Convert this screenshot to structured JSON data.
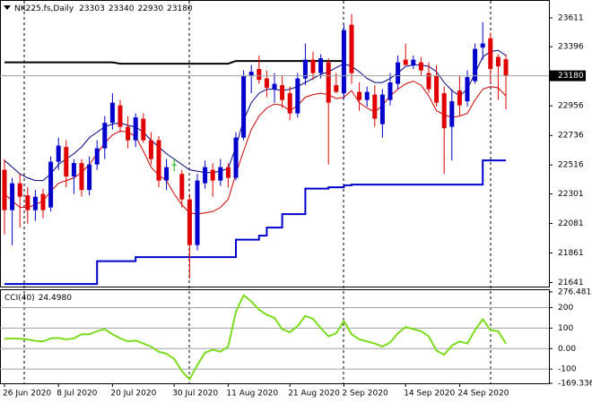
{
  "chart_data": {
    "type": "candlestick",
    "title": "NK225.fs,Daily",
    "colors": {
      "up": "#0000cd",
      "down": "#e00000",
      "doji": "#00b000",
      "price_line": "#a0a0a0"
    },
    "ylim": [
      21611,
      23744
    ],
    "yticks": [
      23611,
      23396,
      22956,
      22736,
      22516,
      22301,
      22081,
      21861,
      21641
    ],
    "xticks": [
      {
        "value": 0,
        "label": "26 Jun 2020"
      },
      {
        "value": 7,
        "label": "8 Jul 2020"
      },
      {
        "value": 14,
        "label": "20 Jul 2020"
      },
      {
        "value": 22,
        "label": "30 Jul 2020"
      },
      {
        "value": 29,
        "label": "11 Aug 2020"
      },
      {
        "value": 37,
        "label": "21 Aug 2020"
      },
      {
        "value": 44,
        "label": "2 Sep 2020"
      },
      {
        "value": 52,
        "label": "14 Sep 2020"
      },
      {
        "value": 59,
        "label": "24 Sep 2020"
      }
    ],
    "candles": [
      [
        22480,
        22560,
        22000,
        22180
      ],
      [
        22180,
        22420,
        21920,
        22380
      ],
      [
        22380,
        22450,
        22050,
        22280
      ],
      [
        22290,
        22350,
        22080,
        22180
      ],
      [
        22180,
        22330,
        22100,
        22280
      ],
      [
        22300,
        22340,
        22120,
        22180
      ],
      [
        22200,
        22580,
        22170,
        22540
      ],
      [
        22540,
        22720,
        22480,
        22660
      ],
      [
        22650,
        22700,
        22350,
        22430
      ],
      [
        22430,
        22560,
        22300,
        22530
      ],
      [
        22530,
        22560,
        22280,
        22330
      ],
      [
        22330,
        22580,
        22290,
        22520
      ],
      [
        22520,
        22700,
        22480,
        22640
      ],
      [
        22640,
        22880,
        22560,
        22830
      ],
      [
        22830,
        23050,
        22780,
        22980
      ],
      [
        22960,
        23000,
        22760,
        22800
      ],
      [
        22800,
        22880,
        22640,
        22700
      ],
      [
        22700,
        22900,
        22650,
        22870
      ],
      [
        22860,
        22900,
        22680,
        22700
      ],
      [
        22700,
        22760,
        22520,
        22560
      ],
      [
        22700,
        22730,
        22350,
        22400
      ],
      [
        22400,
        22560,
        22330,
        22500
      ],
      [
        22520,
        22560,
        22470,
        22520
      ],
      [
        22450,
        22480,
        22200,
        22260
      ],
      [
        22260,
        22300,
        21670,
        21920
      ],
      [
        21920,
        22450,
        21880,
        22400
      ],
      [
        22380,
        22550,
        22340,
        22500
      ],
      [
        22480,
        22530,
        22280,
        22400
      ],
      [
        22400,
        22560,
        22360,
        22500
      ],
      [
        22500,
        22530,
        22350,
        22420
      ],
      [
        22420,
        22760,
        22400,
        22720
      ],
      [
        22720,
        23220,
        22700,
        23180
      ],
      [
        23180,
        23260,
        23050,
        23210
      ],
      [
        23230,
        23330,
        23120,
        23150
      ],
      [
        23160,
        23220,
        23020,
        23090
      ],
      [
        23080,
        23200,
        22980,
        23120
      ],
      [
        23110,
        23180,
        22940,
        23000
      ],
      [
        23050,
        23100,
        22850,
        22900
      ],
      [
        22900,
        23200,
        22870,
        23160
      ],
      [
        23160,
        23420,
        23110,
        23300
      ],
      [
        23300,
        23360,
        23150,
        23200
      ],
      [
        23200,
        23340,
        23160,
        23310
      ],
      [
        23280,
        23310,
        22520,
        22980
      ],
      [
        23110,
        23200,
        23050,
        23060
      ],
      [
        23050,
        23560,
        23010,
        23520
      ],
      [
        23560,
        23640,
        23120,
        23200
      ],
      [
        23060,
        23130,
        22920,
        23000
      ],
      [
        23000,
        23100,
        22950,
        23060
      ],
      [
        23040,
        23110,
        22800,
        22860
      ],
      [
        22820,
        23080,
        22720,
        23040
      ],
      [
        23000,
        23200,
        22960,
        23130
      ],
      [
        23120,
        23330,
        23080,
        23280
      ],
      [
        23300,
        23420,
        23260,
        23260
      ],
      [
        23260,
        23330,
        23230,
        23300
      ],
      [
        23280,
        23320,
        23180,
        23220
      ],
      [
        23200,
        23280,
        23050,
        23080
      ],
      [
        23180,
        23260,
        22950,
        22980
      ],
      [
        23050,
        23100,
        22450,
        22790
      ],
      [
        22800,
        23080,
        22550,
        22990
      ],
      [
        23070,
        23180,
        22880,
        22960
      ],
      [
        22990,
        23220,
        22950,
        23170
      ],
      [
        23140,
        23420,
        23120,
        23380
      ],
      [
        23390,
        23580,
        23300,
        23420
      ],
      [
        23460,
        23500,
        23130,
        23230
      ],
      [
        23320,
        23340,
        23000,
        23250
      ],
      [
        23303,
        23340,
        22930,
        23180
      ]
    ],
    "overlays": [
      {
        "color": "#000000",
        "width": 2,
        "values": [
          23280,
          23280,
          23280,
          23280,
          23280,
          23280,
          23280,
          23280,
          23280,
          23280,
          23280,
          23280,
          23280,
          23280,
          23280,
          23270,
          23270,
          23270,
          23270,
          23270,
          23270,
          23270,
          23270,
          23270,
          23270,
          23270,
          23270,
          23270,
          23270,
          23270,
          23290,
          23290,
          23290,
          23290,
          23290,
          23290,
          23290,
          23290,
          23290,
          23290,
          23290,
          23290,
          23290,
          23290,
          23290,
          null,
          null,
          null,
          null,
          null,
          null,
          null,
          null,
          null,
          null,
          null,
          null,
          null,
          null,
          null,
          null,
          null,
          null,
          null,
          null,
          null
        ]
      },
      {
        "color": "#000080",
        "width": 1,
        "values": [
          22550,
          22500,
          22450,
          22420,
          22400,
          22400,
          22450,
          22520,
          22560,
          22600,
          22650,
          22720,
          22760,
          22800,
          22820,
          22830,
          22810,
          22800,
          22760,
          22700,
          22650,
          22600,
          22560,
          22520,
          22480,
          22470,
          22460,
          22460,
          22470,
          22490,
          22650,
          22850,
          22980,
          23050,
          23080,
          23080,
          23070,
          23080,
          23100,
          23130,
          23160,
          23190,
          23210,
          23240,
          23270,
          23250,
          23210,
          23160,
          23130,
          23130,
          23160,
          23200,
          23250,
          23260,
          23260,
          23250,
          23210,
          23130,
          23070,
          23030,
          23080,
          23200,
          23320,
          23360,
          23370,
          23330
        ]
      },
      {
        "color": "#cc0000",
        "width": 1,
        "values": [
          22300,
          22250,
          22200,
          22200,
          22220,
          22250,
          22320,
          22380,
          22400,
          22420,
          22460,
          22520,
          22600,
          22680,
          22740,
          22770,
          22760,
          22730,
          22620,
          22500,
          22440,
          22400,
          22300,
          22220,
          22160,
          22150,
          22160,
          22170,
          22200,
          22260,
          22450,
          22620,
          22780,
          22880,
          22940,
          22970,
          22960,
          22920,
          22960,
          23020,
          23040,
          23050,
          23040,
          23010,
          23020,
          23070,
          22980,
          22940,
          22910,
          22960,
          23030,
          23080,
          23120,
          23140,
          23110,
          23030,
          22920,
          22890,
          22870,
          22880,
          22900,
          23000,
          23080,
          23100,
          23090,
          23030
        ]
      },
      {
        "color": "#0000cd",
        "width": 2,
        "step": true,
        "values": [
          21630,
          21630,
          21630,
          21630,
          21630,
          21630,
          21630,
          21630,
          21630,
          21630,
          21630,
          21630,
          21800,
          21800,
          21800,
          21800,
          21800,
          21830,
          21830,
          21830,
          21830,
          21830,
          21830,
          21830,
          21830,
          21830,
          21830,
          21830,
          21830,
          21830,
          21960,
          21960,
          21960,
          21990,
          22050,
          22050,
          22150,
          22150,
          22150,
          22340,
          22340,
          22340,
          22350,
          22350,
          22365,
          22370,
          22370,
          22370,
          22370,
          22370,
          22370,
          22370,
          22370,
          22370,
          22370,
          22370,
          22370,
          22370,
          22370,
          22370,
          22370,
          22370,
          22550,
          22550,
          22550,
          22550
        ]
      }
    ],
    "indicator": {
      "type": "line",
      "name": "CCI(40)",
      "readout": "24.4980",
      "color": "#7cdc1c",
      "ylim": [
        -169.336,
        276.4817
      ],
      "yticks": [
        276.4817,
        200,
        100,
        {
          "value": 0,
          "label": "0.00"
        },
        -100,
        -169.336
      ],
      "values": [
        48,
        50,
        48,
        45,
        38,
        35,
        50,
        52,
        45,
        50,
        70,
        70,
        85,
        95,
        70,
        50,
        35,
        40,
        25,
        10,
        -15,
        -25,
        -50,
        -110,
        -150,
        -80,
        -20,
        -5,
        -15,
        10,
        180,
        260,
        230,
        190,
        165,
        150,
        95,
        80,
        110,
        160,
        145,
        100,
        60,
        75,
        135,
        70,
        45,
        35,
        25,
        10,
        30,
        75,
        105,
        95,
        85,
        60,
        -10,
        -30,
        15,
        35,
        25,
        90,
        143,
        90,
        85,
        24.498
      ]
    }
  }
}
